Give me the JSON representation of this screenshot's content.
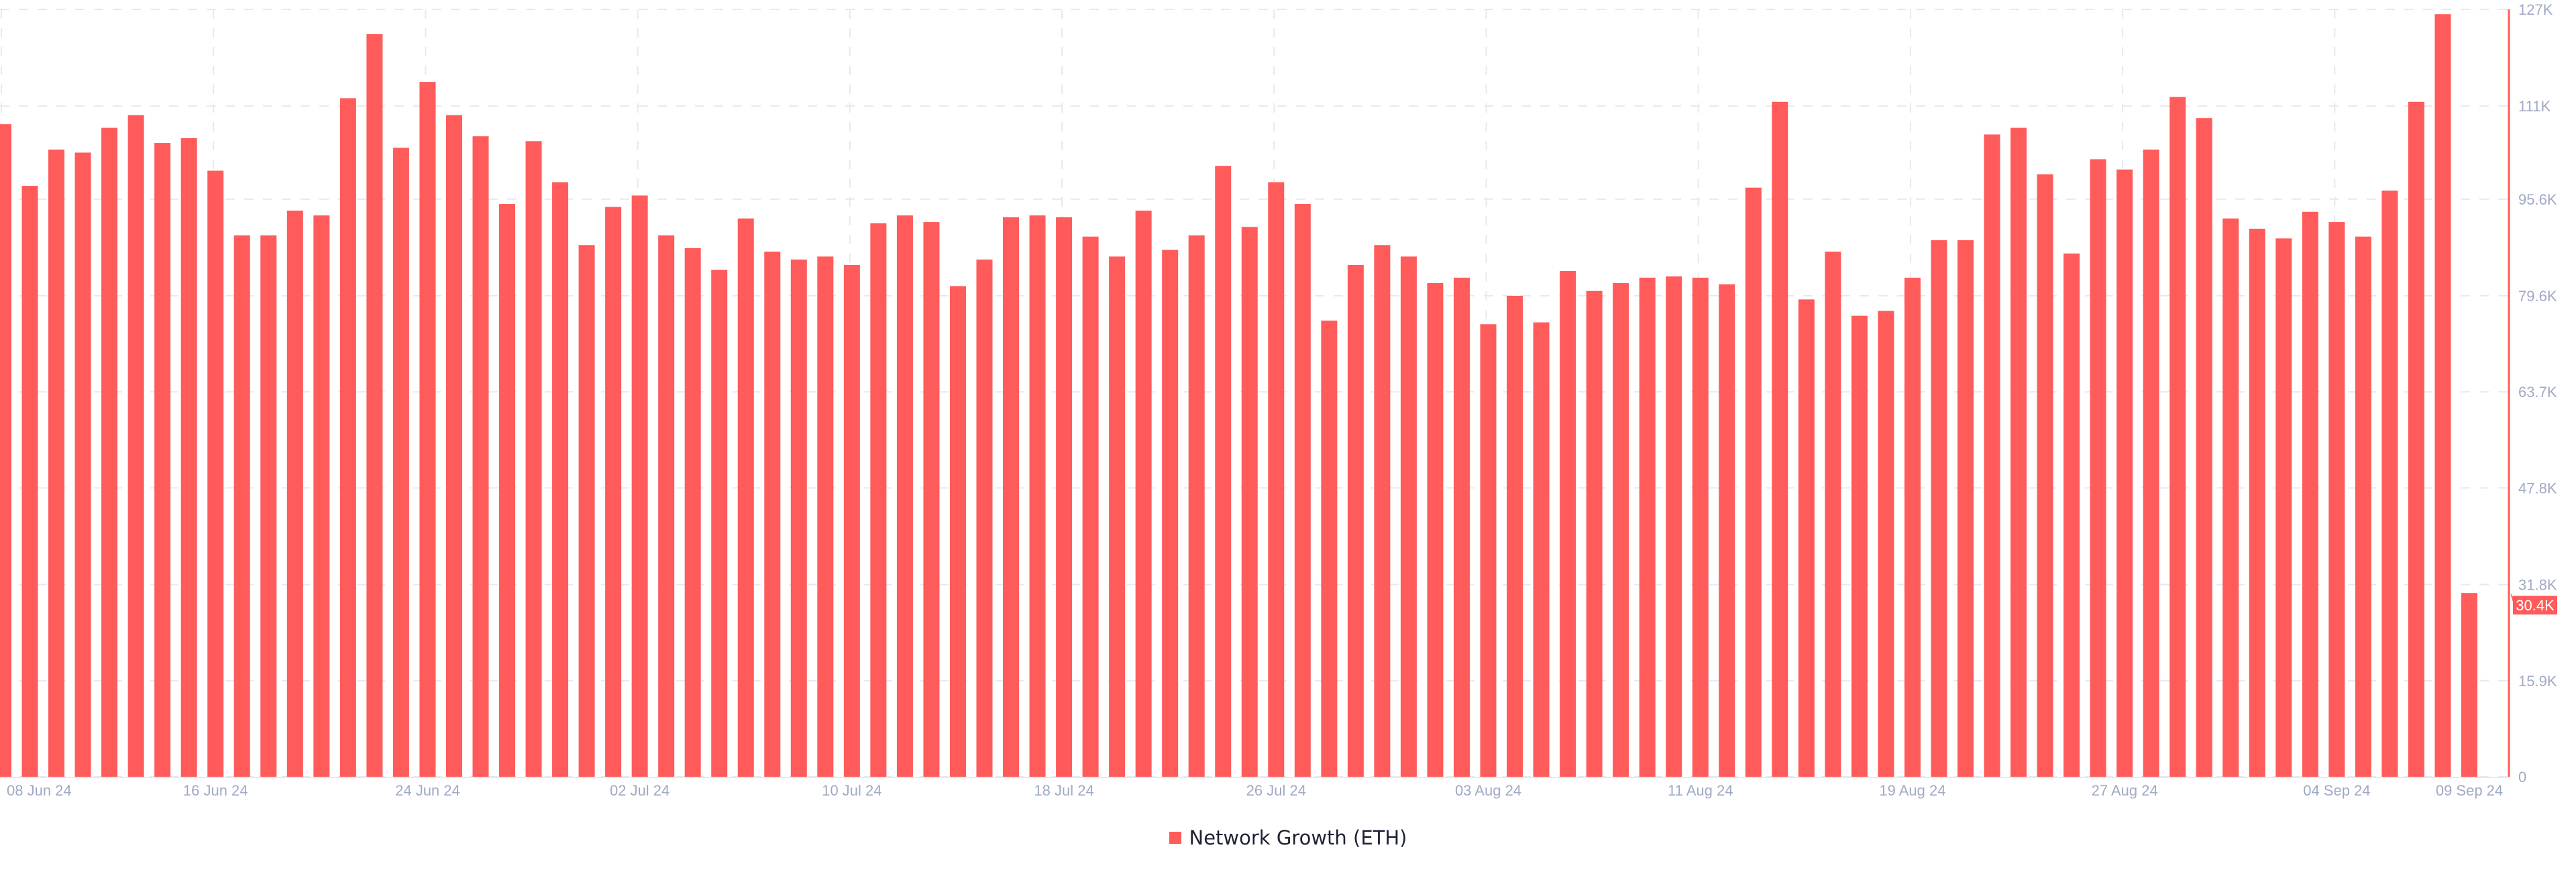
{
  "chart_data": {
    "type": "bar",
    "title": "",
    "xlabel": "",
    "ylabel": "",
    "ylim": [
      0,
      127000
    ],
    "y_axis_position": "right",
    "grid": true,
    "legend_placement": "bottom-center",
    "y_ticks": [
      "0",
      "15.9K",
      "31.8K",
      "47.8K",
      "63.7K",
      "79.6K",
      "95.6K",
      "111K",
      "127K"
    ],
    "y_tick_values": [
      0,
      15900,
      31800,
      47800,
      63700,
      79600,
      95600,
      111000,
      127000
    ],
    "x_ticks": [
      {
        "label": "08 Jun 24",
        "date": "2024-06-08"
      },
      {
        "label": "16 Jun 24",
        "date": "2024-06-16"
      },
      {
        "label": "24 Jun 24",
        "date": "2024-06-24"
      },
      {
        "label": "02 Jul 24",
        "date": "2024-07-02"
      },
      {
        "label": "10 Jul 24",
        "date": "2024-07-10"
      },
      {
        "label": "18 Jul 24",
        "date": "2024-07-18"
      },
      {
        "label": "26 Jul 24",
        "date": "2024-07-26"
      },
      {
        "label": "03 Aug 24",
        "date": "2024-08-03"
      },
      {
        "label": "11 Aug 24",
        "date": "2024-08-11"
      },
      {
        "label": "19 Aug 24",
        "date": "2024-08-19"
      },
      {
        "label": "27 Aug 24",
        "date": "2024-08-27"
      },
      {
        "label": "04 Sep 24",
        "date": "2024-09-04"
      },
      {
        "label": "09 Sep 24",
        "date": "2024-09-09"
      }
    ],
    "x_start": "2024-06-08",
    "x_end": "2024-09-09",
    "series": [
      {
        "name": "Network Growth (ETH)",
        "color": "#ff5b5b",
        "values": [
          108000,
          97800,
          103800,
          103300,
          107400,
          109500,
          104900,
          105700,
          100300,
          89600,
          89600,
          93700,
          92900,
          112300,
          122900,
          104100,
          115000,
          109500,
          106000,
          94800,
          105200,
          98400,
          88000,
          94300,
          96200,
          89600,
          87500,
          83900,
          92400,
          86900,
          85600,
          86100,
          84700,
          91600,
          92900,
          91800,
          81200,
          85600,
          92600,
          92900,
          92600,
          89400,
          86100,
          93700,
          87200,
          89600,
          101100,
          91000,
          98400,
          94800,
          75500,
          84700,
          88000,
          86100,
          81700,
          82600,
          74900,
          79600,
          75200,
          83700,
          80400,
          81700,
          82600,
          82800,
          82600,
          81500,
          97500,
          111700,
          79000,
          86900,
          76300,
          77100,
          82600,
          88800,
          88800,
          106300,
          107400,
          99700,
          86600,
          102200,
          100500,
          103800,
          112500,
          109000,
          92400,
          90700,
          89100,
          93500,
          91800,
          89400,
          97000,
          111700,
          126200,
          30400
        ]
      }
    ],
    "last_value_label": "30.4K",
    "colors": {
      "bar": "#ff5b5b",
      "grid": "#e6e9f2",
      "tick_text": "#9faac4",
      "axis": "#ff5b5b"
    }
  },
  "legend": {
    "label": "Network Growth (ETH)"
  }
}
